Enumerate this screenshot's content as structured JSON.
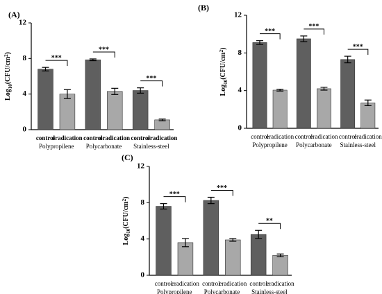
{
  "chart_data": [
    {
      "type": "bar",
      "title": "(A)",
      "ylabel": {
        "base": "Log",
        "sub": "10",
        "mid": "(CFU/cm",
        "sup": "2",
        "end": ")"
      },
      "groups": [
        "Polypropilene",
        "Polycarbonate",
        "Stainless-steel"
      ],
      "categories": [
        "control",
        "eradication",
        "control",
        "eradication",
        "control",
        "eradication"
      ],
      "values": [
        6.8,
        4.0,
        7.85,
        4.3,
        4.4,
        1.1
      ],
      "errors": [
        0.2,
        0.5,
        0.1,
        0.35,
        0.3,
        0.1
      ],
      "colors": [
        "#5f5f5f",
        "#a8a8a8",
        "#5f5f5f",
        "#a8a8a8",
        "#5f5f5f",
        "#a8a8a8"
      ],
      "annotations": [
        "***",
        "***",
        "***"
      ],
      "ylim": [
        0,
        12
      ],
      "yticks": [
        0,
        4,
        8,
        12
      ]
    },
    {
      "type": "bar",
      "title": "(B)",
      "ylabel": {
        "base": "Log",
        "sub": "10",
        "mid": "(CFU/cm",
        "sup": "2",
        "end": ")"
      },
      "groups": [
        "Polypropilene",
        "Polycarbonate",
        "Stainless-steel"
      ],
      "categories": [
        "control",
        "eradication",
        "control",
        "eradication",
        "control",
        "eradication"
      ],
      "values": [
        9.1,
        4.05,
        9.5,
        4.2,
        7.3,
        2.7
      ],
      "errors": [
        0.2,
        0.1,
        0.3,
        0.15,
        0.35,
        0.3
      ],
      "colors": [
        "#5f5f5f",
        "#a8a8a8",
        "#5f5f5f",
        "#a8a8a8",
        "#5f5f5f",
        "#a8a8a8"
      ],
      "annotations": [
        "***",
        "***",
        "***"
      ],
      "ylim": [
        0,
        12
      ],
      "yticks": [
        0,
        4,
        8,
        12
      ]
    },
    {
      "type": "bar",
      "title": "(C)",
      "ylabel": {
        "base": "Log",
        "sub": "10",
        "mid": "(CFU/cm",
        "sup": "2",
        "end": ")"
      },
      "groups": [
        "Polypropilene",
        "Polycarbonate",
        "Stainless-steel"
      ],
      "categories": [
        "control",
        "eradication",
        "control",
        "eradication",
        "control",
        "eradication"
      ],
      "values": [
        7.6,
        3.6,
        8.25,
        3.9,
        4.5,
        2.2
      ],
      "errors": [
        0.3,
        0.45,
        0.35,
        0.15,
        0.45,
        0.15
      ],
      "colors": [
        "#5f5f5f",
        "#a8a8a8",
        "#5f5f5f",
        "#a8a8a8",
        "#5f5f5f",
        "#a8a8a8"
      ],
      "annotations": [
        "***",
        "***",
        "**"
      ],
      "ylim": [
        0,
        12
      ],
      "yticks": [
        0,
        4,
        8,
        12
      ]
    }
  ]
}
